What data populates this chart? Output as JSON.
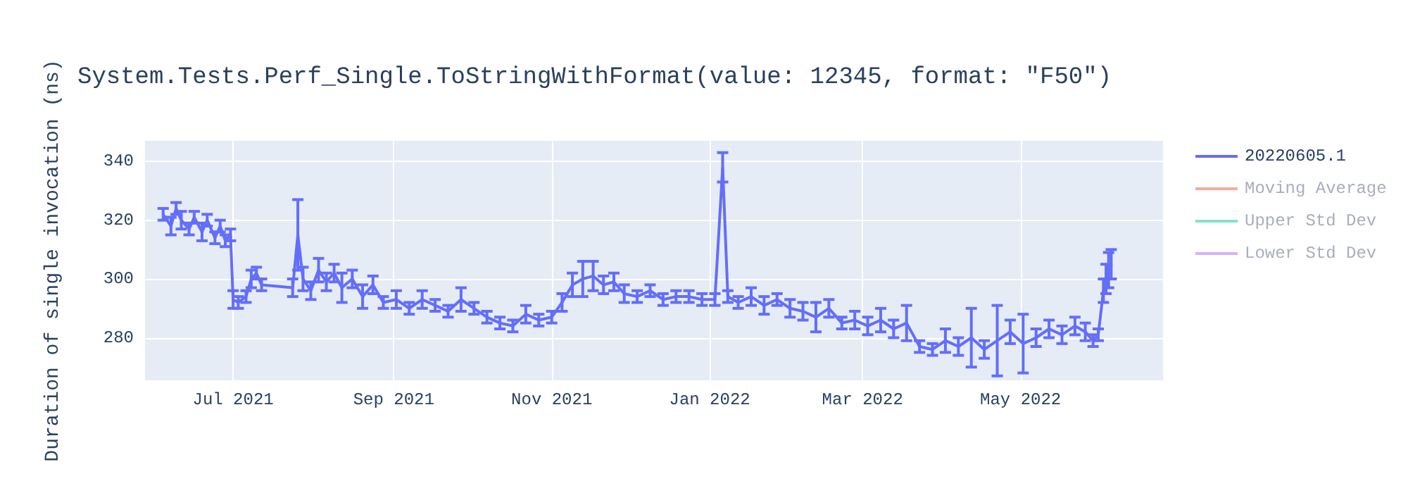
{
  "chart_data": {
    "type": "line",
    "title": "System.Tests.Perf_Single.ToStringWithFormat(value: 12345, format: \"F50\")",
    "ylabel": "Duration of single invocation (ns)",
    "x": [
      "2021-06-04",
      "2021-06-07",
      "2021-06-09",
      "2021-06-11",
      "2021-06-14",
      "2021-06-16",
      "2021-06-19",
      "2021-06-21",
      "2021-06-24",
      "2021-06-26",
      "2021-06-28",
      "2021-06-30",
      "2021-07-01",
      "2021-07-03",
      "2021-07-06",
      "2021-07-08",
      "2021-07-10",
      "2021-07-12",
      "2021-07-24",
      "2021-07-26",
      "2021-07-28",
      "2021-07-31",
      "2021-08-03",
      "2021-08-06",
      "2021-08-09",
      "2021-08-12",
      "2021-08-16",
      "2021-08-20",
      "2021-08-24",
      "2021-08-28",
      "2021-09-02",
      "2021-09-07",
      "2021-09-12",
      "2021-09-17",
      "2021-09-22",
      "2021-09-27",
      "2021-10-02",
      "2021-10-07",
      "2021-10-12",
      "2021-10-17",
      "2021-10-22",
      "2021-10-27",
      "2021-11-01",
      "2021-11-05",
      "2021-11-09",
      "2021-11-13",
      "2021-11-17",
      "2021-11-21",
      "2021-11-25",
      "2021-11-29",
      "2021-12-04",
      "2021-12-09",
      "2021-12-14",
      "2021-12-19",
      "2021-12-24",
      "2021-12-29",
      "2022-01-03",
      "2022-01-06",
      "2022-01-08",
      "2022-01-12",
      "2022-01-17",
      "2022-01-22",
      "2022-01-27",
      "2022-02-01",
      "2022-02-06",
      "2022-02-11",
      "2022-02-16",
      "2022-02-21",
      "2022-02-26",
      "2022-03-03",
      "2022-03-08",
      "2022-03-13",
      "2022-03-18",
      "2022-03-23",
      "2022-03-28",
      "2022-04-02",
      "2022-04-07",
      "2022-04-12",
      "2022-04-17",
      "2022-04-22",
      "2022-04-27",
      "2022-05-02",
      "2022-05-07",
      "2022-05-12",
      "2022-05-17",
      "2022-05-22",
      "2022-05-26",
      "2022-05-29",
      "2022-05-31",
      "2022-06-02",
      "2022-06-03",
      "2022-06-04",
      "2022-06-05"
    ],
    "series": [
      {
        "name": "20220605.1",
        "color": "#636efa",
        "values": [
          322,
          318,
          324,
          320,
          317,
          321,
          316,
          320,
          314,
          318,
          313,
          315,
          293,
          292,
          294,
          300,
          302,
          298,
          297,
          315,
          300,
          296,
          303,
          299,
          302,
          297,
          300,
          294,
          298,
          292,
          293,
          290,
          293,
          291,
          289,
          293,
          290,
          287,
          285,
          284,
          288,
          286,
          287,
          292,
          298,
          300,
          301,
          298,
          299,
          295,
          294,
          296,
          293,
          294,
          294,
          293,
          293,
          338,
          294,
          292,
          294,
          291,
          293,
          290,
          289,
          287,
          290,
          285,
          286,
          284,
          286,
          283,
          285,
          277,
          276,
          279,
          277,
          280,
          276,
          279,
          282,
          278,
          280,
          283,
          281,
          284,
          282,
          279,
          281,
          296,
          300,
          303,
          305
        ],
        "errors": [
          2,
          3,
          2,
          3,
          2,
          2,
          3,
          2,
          2,
          2,
          2,
          2,
          3,
          2,
          2,
          3,
          2,
          2,
          3,
          12,
          4,
          3,
          4,
          3,
          3,
          5,
          3,
          4,
          3,
          2,
          3,
          2,
          3,
          2,
          2,
          4,
          2,
          2,
          2,
          2,
          3,
          2,
          2,
          3,
          4,
          6,
          5,
          3,
          3,
          3,
          2,
          2,
          2,
          2,
          2,
          2,
          2,
          5,
          2,
          2,
          3,
          3,
          2,
          3,
          3,
          5,
          3,
          2,
          3,
          3,
          4,
          3,
          6,
          2,
          2,
          4,
          3,
          10,
          3,
          12,
          4,
          10,
          3,
          3,
          3,
          3,
          3,
          2,
          2,
          4,
          5,
          6,
          5
        ]
      },
      {
        "name": "Moving Average",
        "color": "#ef553b",
        "values": [
          null,
          null,
          null,
          null,
          null,
          null,
          null,
          null,
          null,
          null,
          null,
          null,
          null,
          null,
          null,
          null,
          null,
          null,
          null,
          null,
          null,
          null,
          null,
          null,
          null,
          null,
          null,
          null,
          null,
          null,
          null,
          null,
          null,
          null,
          null,
          null,
          null,
          null,
          null,
          null,
          null,
          null,
          null,
          null,
          null,
          null,
          null,
          null,
          null,
          null,
          null,
          null,
          null,
          null,
          null,
          null,
          null,
          null,
          null,
          null,
          null,
          null,
          null,
          null,
          null,
          null,
          null,
          null,
          null,
          null,
          null,
          null,
          null,
          null,
          null,
          null,
          null,
          null,
          null,
          null,
          null,
          null,
          null,
          null,
          null,
          null,
          null,
          null,
          null,
          null,
          null,
          null,
          null
        ]
      },
      {
        "name": "Upper Std Dev",
        "color": "#00cc96",
        "values": [
          null,
          null,
          null,
          null,
          null,
          null,
          null,
          null,
          null,
          null,
          null,
          null,
          null,
          null,
          null,
          null,
          null,
          null,
          null,
          null,
          null,
          null,
          null,
          null,
          null,
          null,
          null,
          null,
          null,
          null,
          null,
          null,
          null,
          null,
          null,
          null,
          null,
          null,
          null,
          null,
          null,
          null,
          null,
          null,
          null,
          null,
          null,
          null,
          null,
          null,
          null,
          null,
          null,
          null,
          null,
          null,
          null,
          null,
          null,
          null,
          null,
          null,
          null,
          null,
          null,
          null,
          null,
          null,
          null,
          null,
          null,
          null,
          null,
          null,
          null,
          null,
          null,
          null,
          null,
          null,
          null,
          null,
          null,
          null,
          null,
          null,
          null,
          null,
          null,
          null,
          null,
          null,
          null
        ]
      },
      {
        "name": "Lower Std Dev",
        "color": "#ab63fa",
        "values": [
          null,
          null,
          null,
          null,
          null,
          null,
          null,
          null,
          null,
          null,
          null,
          null,
          null,
          null,
          null,
          null,
          null,
          null,
          null,
          null,
          null,
          null,
          null,
          null,
          null,
          null,
          null,
          null,
          null,
          null,
          null,
          null,
          null,
          null,
          null,
          null,
          null,
          null,
          null,
          null,
          null,
          null,
          null,
          null,
          null,
          null,
          null,
          null,
          null,
          null,
          null,
          null,
          null,
          null,
          null,
          null,
          null,
          null,
          null,
          null,
          null,
          null,
          null,
          null,
          null,
          null,
          null,
          null,
          null,
          null,
          null,
          null,
          null,
          null,
          null,
          null,
          null,
          null,
          null,
          null,
          null,
          null,
          null,
          null,
          null,
          null,
          null,
          null,
          null,
          null,
          null,
          null,
          null
        ]
      }
    ],
    "xlim": [
      "2021-05-28",
      "2022-06-25"
    ],
    "xticks": [
      {
        "value": "2021-07-01",
        "label": "Jul 2021"
      },
      {
        "value": "2021-09-01",
        "label": "Sep 2021"
      },
      {
        "value": "2021-11-01",
        "label": "Nov 2021"
      },
      {
        "value": "2022-01-01",
        "label": "Jan 2022"
      },
      {
        "value": "2022-03-01",
        "label": "Mar 2022"
      },
      {
        "value": "2022-05-01",
        "label": "May 2022"
      }
    ],
    "ylim": [
      265.5,
      347
    ],
    "yticks": [
      280,
      300,
      320,
      340
    ],
    "grid": true,
    "legend": "top right",
    "marker": "none",
    "line_style": "solid"
  }
}
